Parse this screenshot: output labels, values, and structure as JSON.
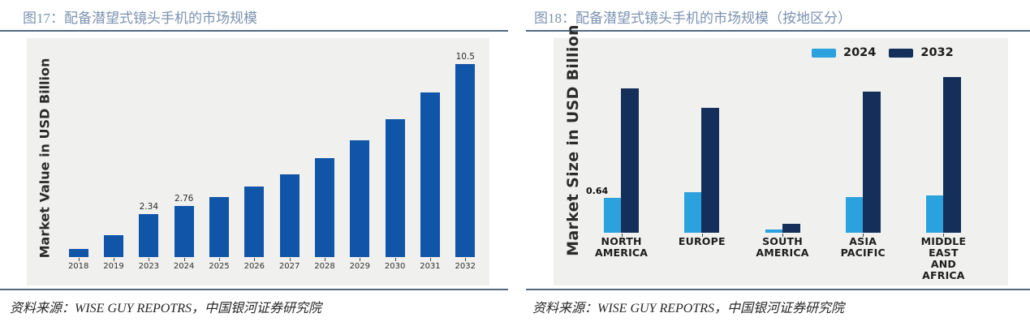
{
  "figures": [
    {
      "title": "图17：配备潜望式镜头手机的市场规模",
      "source_label": "资料来源：",
      "source_text": "WISE GUY REPOTRS，中国银河证券研究院"
    },
    {
      "title": "图18：配备潜望式镜头手机的市场规模（按地区分）",
      "source_label": "资料来源：",
      "source_text": "WISE GUY REPOTRS，中国银河证券研究院"
    }
  ],
  "colors": {
    "title": "#7b92b0",
    "rule": "#54697f",
    "panel_bg": "#f0f0ee",
    "bar_blue": "#1155a9",
    "light_blue": "#2ba1de",
    "navy": "#14305a",
    "axis_text": "#2f2f2f"
  },
  "chart_data": [
    {
      "type": "bar",
      "title": "配备潜望式镜头手机的市场规模",
      "xlabel": "",
      "ylabel": "Market Value in USD Billion",
      "categories": [
        "2018",
        "2019",
        "2023",
        "2024",
        "2025",
        "2026",
        "2027",
        "2028",
        "2029",
        "2030",
        "2031",
        "2032"
      ],
      "values": [
        0.45,
        1.18,
        2.34,
        2.76,
        3.26,
        3.86,
        4.52,
        5.39,
        6.36,
        7.52,
        8.96,
        10.5
      ],
      "point_labels": [
        "",
        "",
        "2.34",
        "2.76",
        "",
        "",
        "",
        "",
        "",
        "",
        "",
        "10.5"
      ],
      "bar_color": "#1155a9",
      "ylim": [
        0,
        10.5
      ],
      "grid": false,
      "legend_position": "none"
    },
    {
      "type": "bar",
      "title": "配备潜望式镜头手机的市场规模（按地区分）",
      "xlabel": "",
      "ylabel": "Market Size in USD Billion",
      "categories": [
        "NORTH\nAMERICA",
        "EUROPE",
        "SOUTH\nAMERICA",
        "ASIA\nPACIFIC",
        "MIDDLE\nEAST\nAND\nAFRICA"
      ],
      "series": [
        {
          "name": "2024",
          "color": "#2ba1de",
          "values": [
            0.64,
            0.74,
            0.06,
            0.65,
            0.68
          ],
          "point_labels": [
            "0.64",
            "",
            "",
            "",
            ""
          ]
        },
        {
          "name": "2032",
          "color": "#14305a",
          "values": [
            2.65,
            2.29,
            0.17,
            2.59,
            2.86
          ],
          "point_labels": [
            "",
            "",
            "",
            "",
            ""
          ]
        }
      ],
      "ylim": [
        0,
        3.1
      ],
      "grid": false,
      "legend_position": "top-right"
    }
  ]
}
